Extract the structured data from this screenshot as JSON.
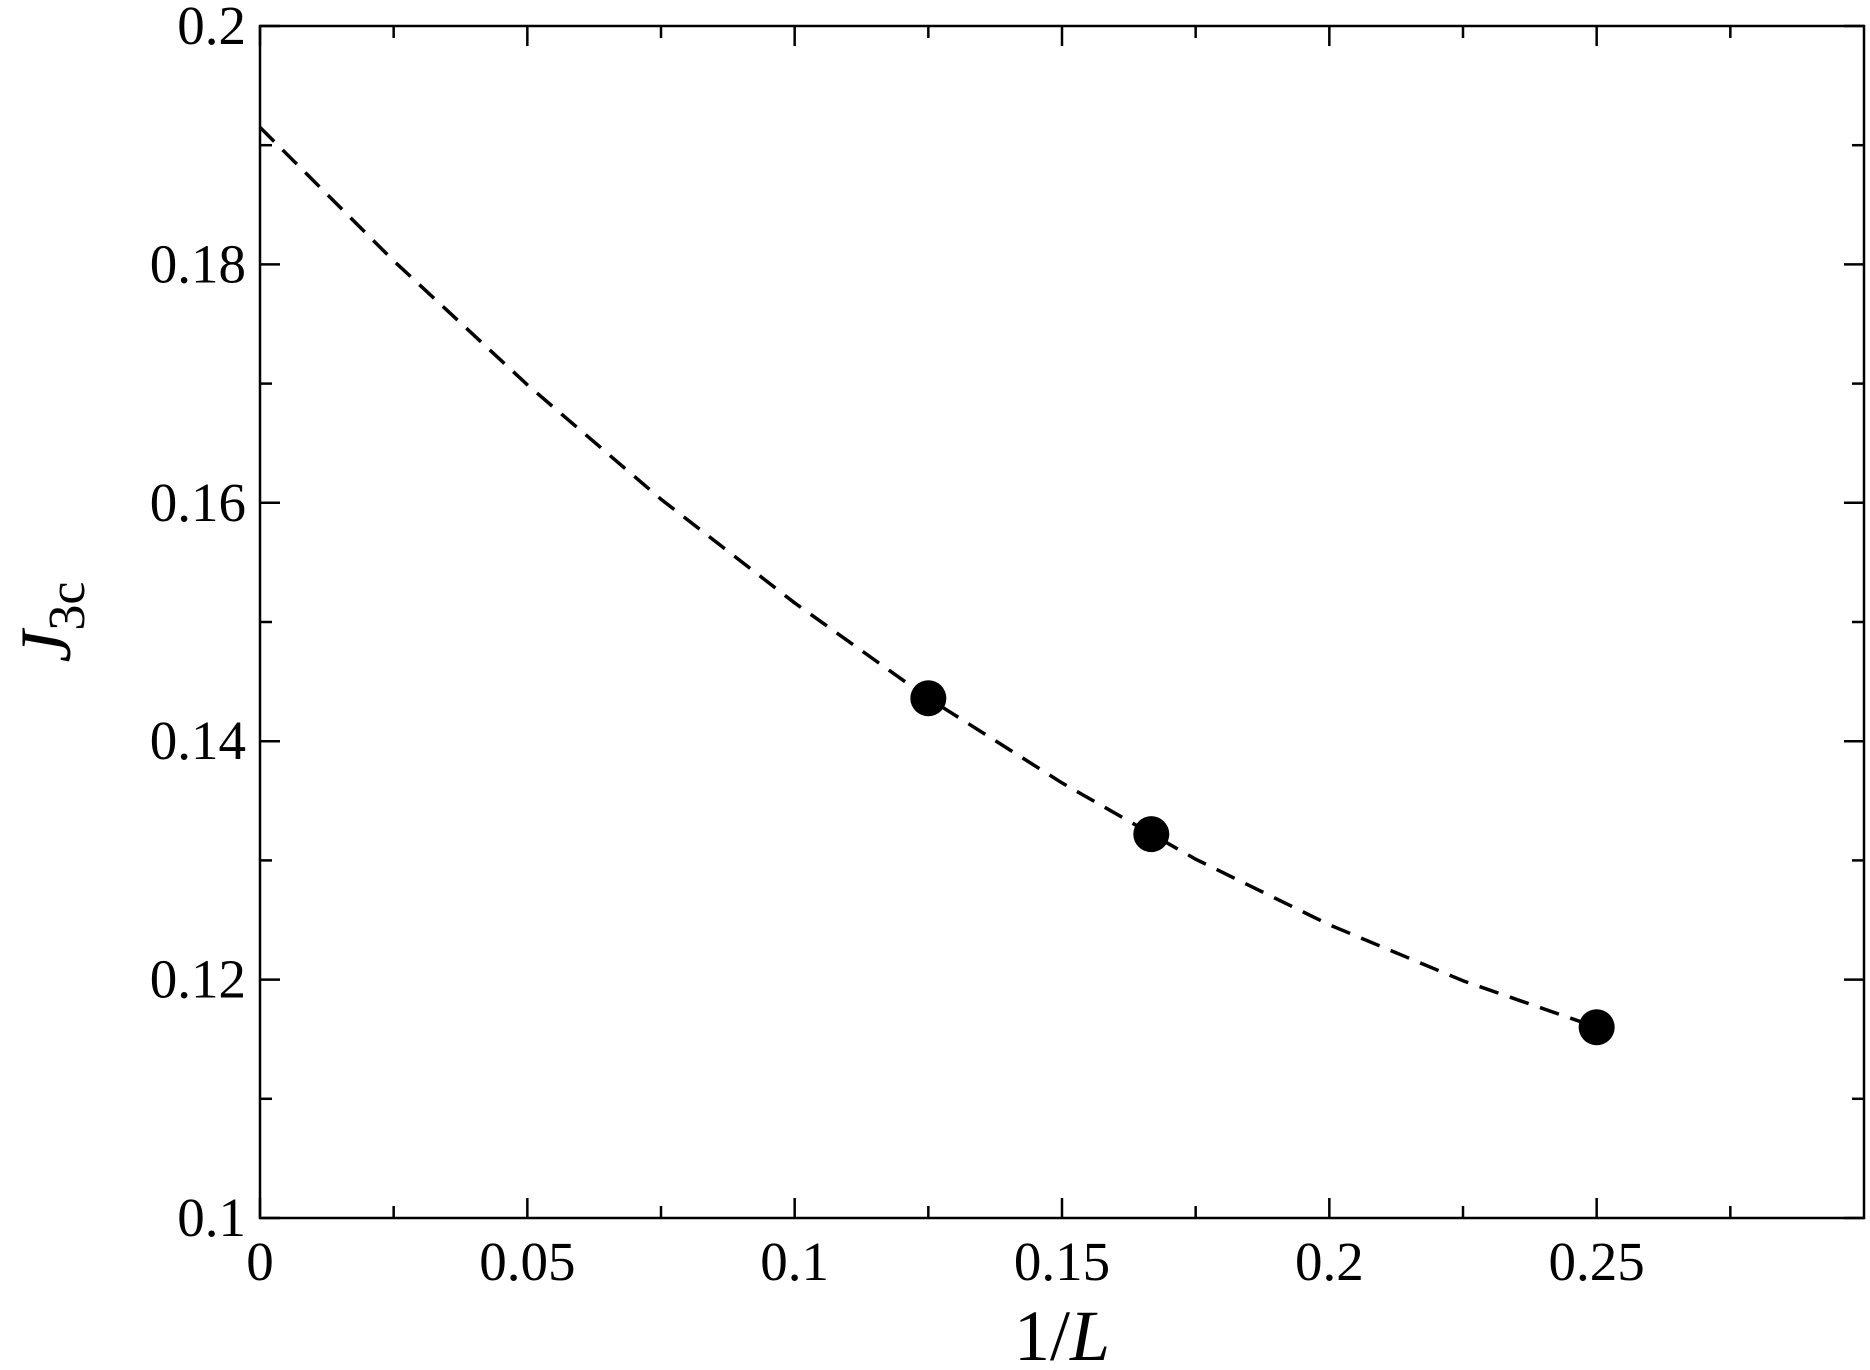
{
  "chart_data": {
    "type": "scatter",
    "xlabel": [
      "1/",
      "L"
    ],
    "ylabel": [
      "J",
      "3c"
    ],
    "xlim": [
      0,
      0.3
    ],
    "ylim": [
      0.1,
      0.2
    ],
    "xticks": [
      0,
      0.05,
      0.1,
      0.15,
      0.2,
      0.25
    ],
    "yticks": [
      0.1,
      0.12,
      0.14,
      0.16,
      0.18,
      0.2
    ],
    "xminorticks": [
      0.025,
      0.075,
      0.125,
      0.175,
      0.225,
      0.275
    ],
    "yminorticks": [
      0.11,
      0.13,
      0.15,
      0.17,
      0.19
    ],
    "series": [
      {
        "color": "#000000",
        "marker": "circle",
        "x": [
          0.125,
          0.1667,
          0.25
        ],
        "values": [
          0.1436,
          0.1322,
          0.116
        ]
      },
      {
        "color": "#000000",
        "line": "dashed",
        "x": [
          0,
          0.025,
          0.05,
          0.075,
          0.1,
          0.125,
          0.15,
          0.175,
          0.2,
          0.225,
          0.25
        ],
        "values": [
          0.1915,
          0.1803,
          0.1699,
          0.1603,
          0.1516,
          0.1436,
          0.1365,
          0.1301,
          0.1246,
          0.1199,
          0.116
        ]
      }
    ]
  }
}
